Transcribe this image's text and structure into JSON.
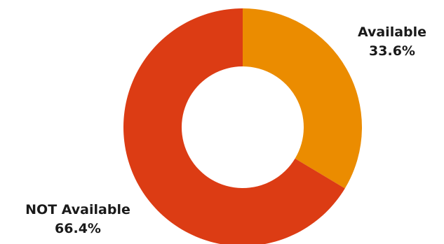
{
  "chart_data": {
    "type": "pie",
    "donut": true,
    "slices": [
      {
        "label": "Available",
        "value_label": "33.6%",
        "value": 33.6,
        "color": "#EB8C00"
      },
      {
        "label": "NOT Available",
        "value_label": "66.4%",
        "value": 66.4,
        "color": "#DC3C14"
      }
    ],
    "start": "12 o'clock",
    "direction": "clockwise",
    "legend": "none"
  }
}
